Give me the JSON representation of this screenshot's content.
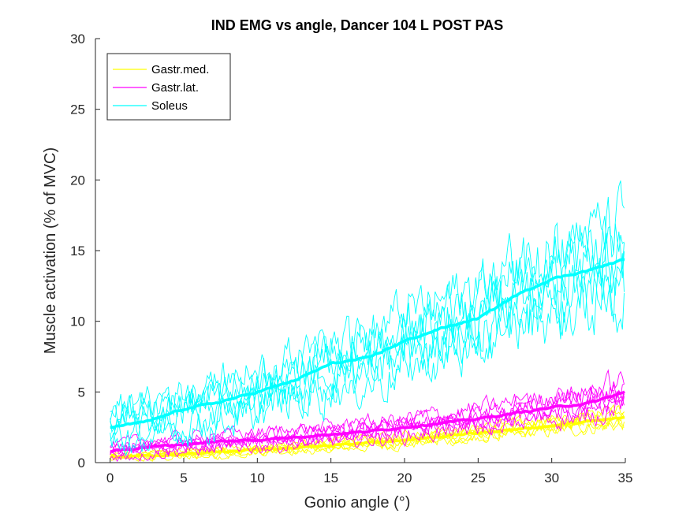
{
  "chart_data": {
    "type": "line",
    "title": "IND EMG vs angle, Dancer 104 L POST PAS",
    "xlabel": "Gonio angle (°)",
    "ylabel": "Muscle activation (% of MVC)",
    "xlim": [
      -1,
      35
    ],
    "ylim": [
      0,
      30
    ],
    "xticks": [
      0,
      5,
      10,
      15,
      20,
      25,
      30,
      35
    ],
    "yticks": [
      0,
      5,
      10,
      15,
      20,
      25,
      30
    ],
    "grid": false,
    "legend_position": "top-left",
    "series": [
      {
        "name": "Gastr.med.",
        "color": "#FFFF00",
        "mean": {
          "x": [
            0,
            2.5,
            5,
            7.5,
            10,
            12.5,
            15,
            17.5,
            20,
            22.5,
            25,
            27.5,
            30,
            32.5,
            35
          ],
          "y": [
            0.4,
            0.5,
            0.6,
            0.75,
            0.9,
            1.05,
            1.2,
            1.4,
            1.6,
            1.85,
            2.1,
            2.35,
            2.6,
            2.9,
            3.2
          ]
        },
        "trial_spread": 0.9
      },
      {
        "name": "Gastr.lat.",
        "color": "#FF00FF",
        "mean": {
          "x": [
            0,
            2.5,
            5,
            7.5,
            10,
            12.5,
            15,
            17.5,
            20,
            22.5,
            25,
            27.5,
            30,
            32.5,
            35
          ],
          "y": [
            0.8,
            1.1,
            1.3,
            1.5,
            1.6,
            1.8,
            2.0,
            2.2,
            2.5,
            2.8,
            3.1,
            3.5,
            3.9,
            4.2,
            5.0
          ]
        },
        "trial_spread": 1.6
      },
      {
        "name": "Soleus",
        "color": "#00FFFF",
        "mean": {
          "x": [
            0,
            2.5,
            5,
            7.5,
            10,
            12.5,
            15,
            17.5,
            20,
            22.5,
            25,
            27.5,
            30,
            32.5,
            35
          ],
          "y": [
            2.5,
            2.9,
            3.8,
            4.3,
            5.0,
            5.8,
            7.0,
            7.4,
            8.6,
            9.5,
            10.2,
            11.8,
            13.0,
            13.6,
            14.4
          ]
        },
        "trial_spread": 4.5
      }
    ]
  }
}
